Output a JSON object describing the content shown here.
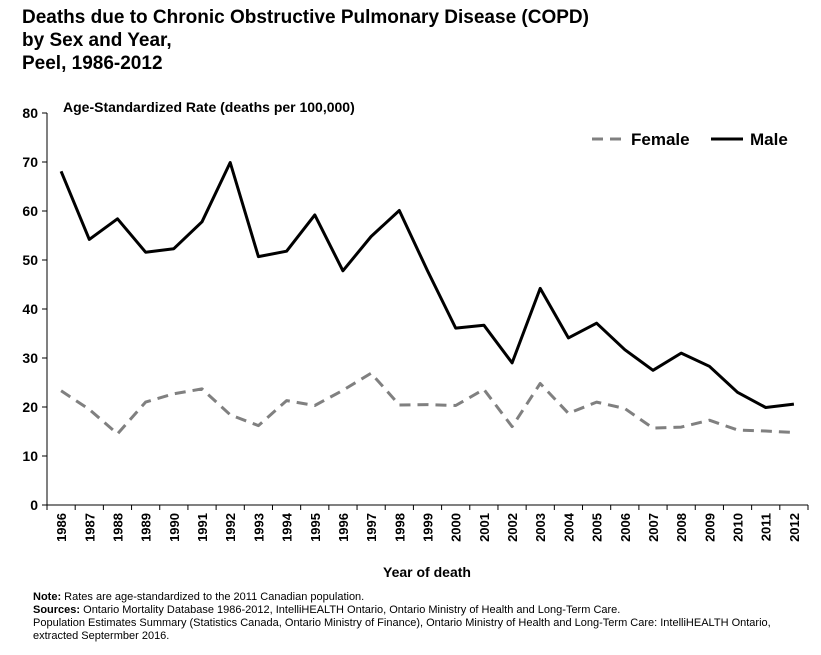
{
  "title_lines": [
    "Deaths due to Chronic Obstructive Pulmonary Disease (COPD)",
    "by Sex and Year,",
    "Peel, 1986-2012"
  ],
  "chart_data": {
    "type": "line",
    "ylabel": "Age-Standardized Rate (deaths per 100,000)",
    "xlabel": "Year of death",
    "ylim": [
      0,
      80
    ],
    "yticks": [
      0,
      10,
      20,
      30,
      40,
      50,
      60,
      70,
      80
    ],
    "grid": false,
    "legend_position": "top-right",
    "x": [
      "1986",
      "1987",
      "1988",
      "1989",
      "1990",
      "1991",
      "1992",
      "1993",
      "1994",
      "1995",
      "1996",
      "1997",
      "1998",
      "1999",
      "2000",
      "2001",
      "2002",
      "2003",
      "2004",
      "2005",
      "2006",
      "2007",
      "2008",
      "2009",
      "2010",
      "2011",
      "2012"
    ],
    "series": [
      {
        "name": "Female",
        "color": "#808080",
        "style": "dashed",
        "values": [
          23.3,
          19.5,
          14.5,
          21.0,
          22.7,
          23.7,
          18.4,
          16.2,
          21.3,
          20.3,
          23.4,
          26.9,
          20.4,
          20.5,
          20.3,
          23.6,
          16.0,
          24.8,
          18.7,
          21.0,
          19.7,
          15.7,
          15.9,
          17.3,
          15.3,
          15.1,
          14.8
        ]
      },
      {
        "name": "Male",
        "color": "#000000",
        "style": "solid",
        "values": [
          68.1,
          54.2,
          58.4,
          51.6,
          52.3,
          57.8,
          69.9,
          50.7,
          51.8,
          59.2,
          47.8,
          54.8,
          60.1,
          47.8,
          36.1,
          36.7,
          29.0,
          44.2,
          34.1,
          37.1,
          31.7,
          27.5,
          31.0,
          28.3,
          23.0,
          19.9,
          20.6
        ]
      }
    ]
  },
  "notes": {
    "note_label": "Note:",
    "note_text": " Rates are age-standardized to the 2011 Canadian population.",
    "sources_label": "Sources:",
    "sources_text": " Ontario Mortality Database 1986-2012, IntelliHEALTH Ontario, Ontario Ministry of Health and Long-Term Care.",
    "sources_line2": "Population Estimates Summary (Statistics Canada, Ontario Ministry of Finance), Ontario Ministry of Health and Long-Term Care: IntelliHEALTH Ontario, extracted Septermber 2016."
  }
}
